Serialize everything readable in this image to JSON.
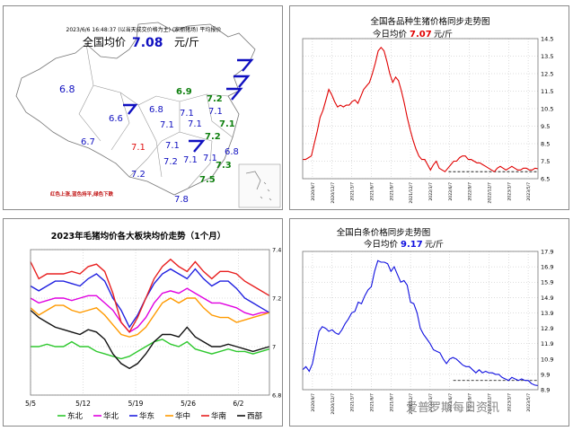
{
  "map": {
    "header": "2023/6/6 16:48:37 (以当天成交价格为主) (家丽猪场) 平均报价",
    "avg_label": "全国均价",
    "avg_value": "7.08",
    "avg_unit": "元/斤",
    "legend_note": "红色上涨,蓝色持平,绿色下跌",
    "colors": {
      "up": "#e01010",
      "flat": "#1010c0",
      "down": "#108010"
    },
    "province_values": [
      {
        "v": "6.8",
        "s": "flat"
      },
      {
        "v": "6.9",
        "s": "down"
      },
      {
        "v": "7.2",
        "s": "down"
      },
      {
        "v": "6.6",
        "s": "flat"
      },
      {
        "v": "6.8",
        "s": "flat"
      },
      {
        "v": "7.1",
        "s": "flat"
      },
      {
        "v": "7.1",
        "s": "flat"
      },
      {
        "v": "7.1",
        "s": "flat"
      },
      {
        "v": "7.1",
        "s": "flat"
      },
      {
        "v": "7.1",
        "s": "down"
      },
      {
        "v": "7.2",
        "s": "down"
      },
      {
        "v": "6.7",
        "s": "flat"
      },
      {
        "v": "7.1",
        "s": "up"
      },
      {
        "v": "7.1",
        "s": "flat"
      },
      {
        "v": "6.8",
        "s": "flat"
      },
      {
        "v": "7.2",
        "s": "flat"
      },
      {
        "v": "7.1",
        "s": "flat"
      },
      {
        "v": "7.1",
        "s": "flat"
      },
      {
        "v": "7.3",
        "s": "down"
      },
      {
        "v": "7.2",
        "s": "flat"
      },
      {
        "v": "7.5",
        "s": "down"
      },
      {
        "v": "7.8",
        "s": "flat"
      }
    ]
  },
  "chart_data": [
    {
      "type": "line",
      "title": "全国各品种生猪价格同步走势图",
      "subtitle_label": "今日均价",
      "subtitle_value": "7.07",
      "subtitle_unit": "元/斤",
      "line_color": "#e00000",
      "reference_value": 6.9,
      "y_ticks": [
        "14.5",
        "13.5",
        "12.5",
        "11.5",
        "10.5",
        "9.5",
        "8.5",
        "7.5",
        "6.5"
      ],
      "ylim": [
        6.5,
        14.5
      ],
      "x_ticks": [
        "2020/9/7",
        "2020/12/7",
        "2021/3/7",
        "2021/6/7",
        "2021/9/7",
        "2021/12/7",
        "2022/3/7",
        "2022/6/7",
        "2022/9/7",
        "2022/12/7",
        "2023/3/7",
        "2023/5/7"
      ],
      "values": [
        7.6,
        7.6,
        7.7,
        7.8,
        8.5,
        9.2,
        10.0,
        10.4,
        11.0,
        11.6,
        11.3,
        10.9,
        10.6,
        10.7,
        10.6,
        10.7,
        10.7,
        10.9,
        11.0,
        10.8,
        11.2,
        11.6,
        11.8,
        12.0,
        12.5,
        13.1,
        13.8,
        14.0,
        13.8,
        13.2,
        12.5,
        12.0,
        12.3,
        12.1,
        11.5,
        10.8,
        10.0,
        9.3,
        8.7,
        8.2,
        7.8,
        7.6,
        7.6,
        7.3,
        7.0,
        7.3,
        7.5,
        7.1,
        7.0,
        6.9,
        7.1,
        7.3,
        7.5,
        7.5,
        7.7,
        7.8,
        7.8,
        7.6,
        7.6,
        7.5,
        7.4,
        7.4,
        7.3,
        7.2,
        7.1,
        7.0,
        6.9,
        7.1,
        7.2,
        7.1,
        7.0,
        7.1,
        7.2,
        7.1,
        7.0,
        7.0,
        7.1,
        7.1,
        7.0,
        7.0,
        7.1,
        7.07
      ]
    },
    {
      "type": "line",
      "title": "2023年毛猪均价各大板块均价走势（1个月）",
      "y_ticks": [
        "7.4",
        "7.2",
        "7",
        "6.8"
      ],
      "ylim": [
        6.8,
        7.4
      ],
      "x_ticks": [
        "5/5",
        "5/12",
        "5/19",
        "5/26",
        "6/2"
      ],
      "series": [
        {
          "name": "东北",
          "color": "#2ec82e",
          "values": [
            7.0,
            7.0,
            7.01,
            7.0,
            7.0,
            7.02,
            7.0,
            7.0,
            6.98,
            6.97,
            6.96,
            6.95,
            6.96,
            6.98,
            7.0,
            7.02,
            7.03,
            7.01,
            7.0,
            7.02,
            6.99,
            6.98,
            6.97,
            6.98,
            6.99,
            6.98,
            6.98,
            6.97,
            6.98,
            6.99
          ]
        },
        {
          "name": "华北",
          "color": "#e000e0",
          "values": [
            7.2,
            7.18,
            7.19,
            7.2,
            7.2,
            7.19,
            7.2,
            7.21,
            7.21,
            7.18,
            7.15,
            7.1,
            7.06,
            7.08,
            7.12,
            7.18,
            7.22,
            7.23,
            7.22,
            7.24,
            7.22,
            7.2,
            7.18,
            7.18,
            7.17,
            7.16,
            7.14,
            7.13,
            7.14,
            7.14
          ]
        },
        {
          "name": "华东",
          "color": "#2020e0",
          "values": [
            7.25,
            7.23,
            7.25,
            7.27,
            7.27,
            7.26,
            7.25,
            7.28,
            7.3,
            7.27,
            7.2,
            7.15,
            7.08,
            7.13,
            7.2,
            7.26,
            7.3,
            7.32,
            7.3,
            7.28,
            7.32,
            7.28,
            7.25,
            7.27,
            7.27,
            7.24,
            7.2,
            7.18,
            7.16,
            7.14
          ]
        },
        {
          "name": "华中",
          "color": "#ff9a00",
          "values": [
            7.16,
            7.13,
            7.15,
            7.17,
            7.17,
            7.15,
            7.14,
            7.15,
            7.16,
            7.13,
            7.09,
            7.05,
            7.04,
            7.05,
            7.08,
            7.13,
            7.18,
            7.2,
            7.18,
            7.2,
            7.2,
            7.16,
            7.13,
            7.12,
            7.12,
            7.1,
            7.11,
            7.12,
            7.13,
            7.14
          ]
        },
        {
          "name": "华南",
          "color": "#e82020",
          "values": [
            7.35,
            7.28,
            7.3,
            7.3,
            7.3,
            7.31,
            7.3,
            7.33,
            7.34,
            7.31,
            7.22,
            7.1,
            7.06,
            7.12,
            7.2,
            7.28,
            7.33,
            7.36,
            7.33,
            7.31,
            7.35,
            7.31,
            7.28,
            7.31,
            7.31,
            7.3,
            7.27,
            7.25,
            7.23,
            7.21
          ]
        },
        {
          "name": "西部",
          "color": "#111111",
          "values": [
            7.15,
            7.12,
            7.1,
            7.08,
            7.07,
            7.06,
            7.05,
            7.07,
            7.06,
            7.03,
            6.97,
            6.93,
            6.91,
            6.93,
            6.97,
            7.02,
            7.05,
            7.05,
            7.04,
            7.08,
            7.04,
            7.02,
            7.0,
            7.0,
            7.01,
            7.0,
            6.99,
            6.98,
            6.99,
            7.0
          ]
        }
      ]
    },
    {
      "type": "line",
      "title": "全国白条价格同步走势图",
      "subtitle_label": "今日均价",
      "subtitle_value": "9.17",
      "subtitle_unit": "元/斤",
      "line_color": "#1010e0",
      "reference_value": 9.5,
      "y_ticks": [
        "17.9",
        "16.9",
        "15.9",
        "14.9",
        "13.9",
        "12.9",
        "11.9",
        "10.9",
        "9.9",
        "8.9"
      ],
      "ylim": [
        8.9,
        17.9
      ],
      "x_ticks": [
        "2020/9/7",
        "2020/12/7",
        "2021/3/7",
        "2021/6/7",
        "2021/9/7",
        "2021/12/7",
        "2022/3/7",
        "2022/6/7",
        "2022/9/7",
        "2022/12/7",
        "2023/3/7",
        "2023/5/7"
      ],
      "values": [
        10.2,
        10.4,
        10.1,
        10.6,
        11.7,
        12.7,
        13.0,
        12.9,
        12.7,
        12.8,
        12.6,
        12.5,
        12.8,
        13.2,
        13.5,
        13.9,
        14.0,
        14.6,
        14.5,
        15.0,
        15.4,
        15.6,
        16.6,
        17.3,
        17.2,
        17.2,
        17.1,
        16.6,
        16.9,
        16.4,
        15.9,
        16.0,
        15.7,
        14.6,
        14.5,
        13.9,
        12.9,
        12.5,
        12.2,
        11.9,
        11.5,
        11.4,
        11.3,
        10.9,
        10.6,
        10.9,
        11.0,
        10.9,
        10.7,
        10.5,
        10.4,
        10.4,
        10.2,
        10.0,
        10.2,
        10.0,
        10.1,
        10.0,
        10.0,
        9.9,
        9.9,
        9.7,
        9.6,
        9.5,
        9.7,
        9.6,
        9.5,
        9.6,
        9.5,
        9.5,
        9.3,
        9.2,
        9.17
      ]
    }
  ],
  "watermark": "爱普罗斯每日资讯"
}
